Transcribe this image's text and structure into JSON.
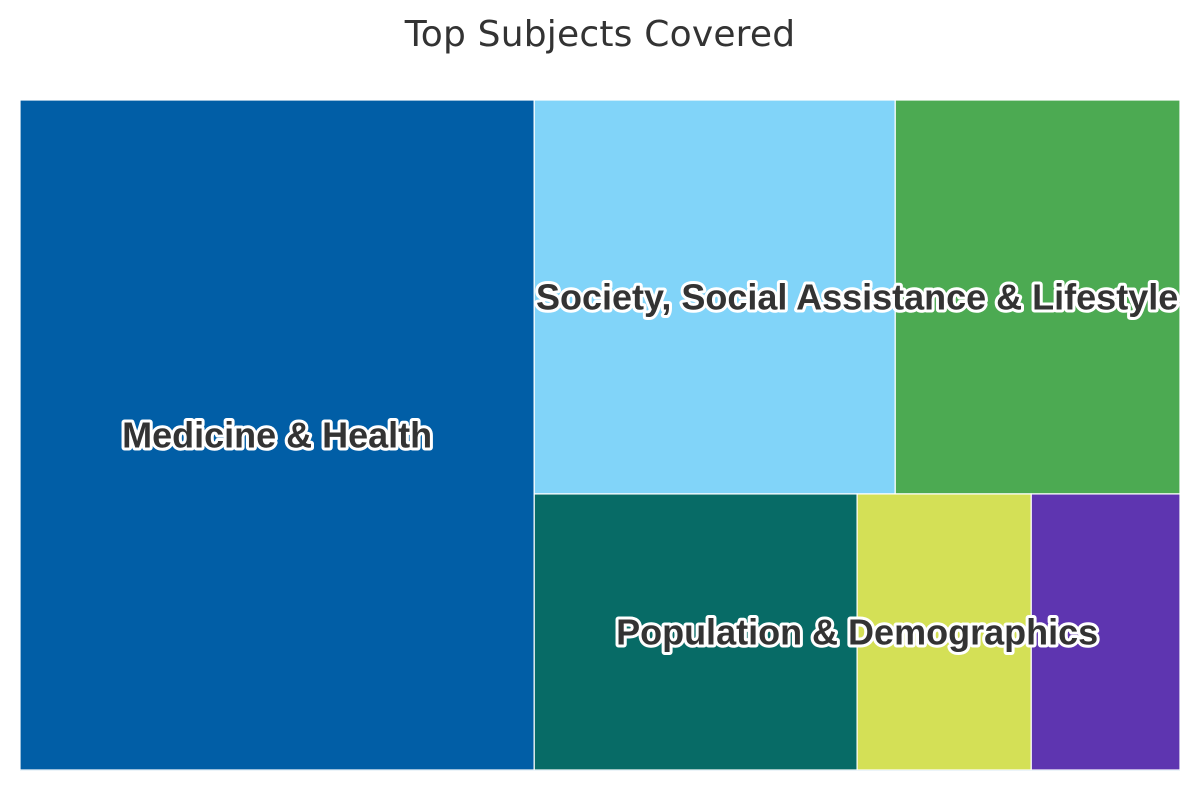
{
  "chart_data": {
    "type": "treemap",
    "title": "Top Subjects Covered",
    "groups": [
      {
        "name": "Medicine & Health",
        "show_label": true,
        "children": [
          {
            "name": "",
            "value": 344,
            "color": "#015ea6"
          }
        ]
      },
      {
        "name": "Society, Social Assistance & Lifestyle",
        "show_label": true,
        "children": [
          {
            "name": "",
            "value": 142,
            "color": "#81d4f9"
          },
          {
            "name": "",
            "value": 112,
            "color": "#4caa52"
          }
        ]
      },
      {
        "name": "Population & Demographics",
        "show_label": true,
        "children": [
          {
            "name": "",
            "value": 89,
            "color": "#076b66"
          },
          {
            "name": "",
            "value": 48,
            "color": "#d4e056"
          },
          {
            "name": "",
            "value": 41,
            "color": "#5e35b0"
          }
        ]
      }
    ]
  }
}
